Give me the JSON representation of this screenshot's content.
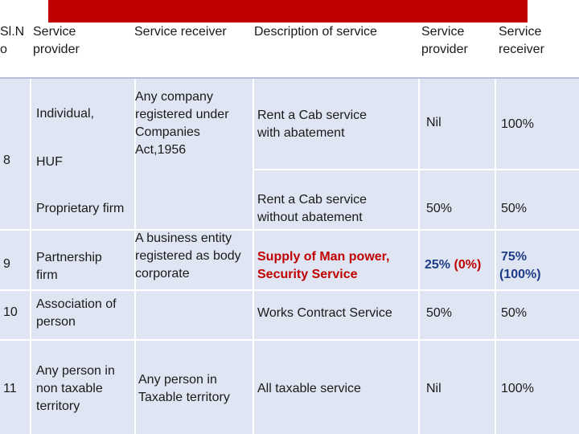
{
  "header": {
    "sl_no": "Sl.N\no",
    "service_provider": "Service\nprovider",
    "service_receiver": "Service receiver",
    "description": "Description of service",
    "pct_service_provider": "Service\nprovider",
    "pct_service_receiver": "Service\nreceiver"
  },
  "rows": {
    "r8": {
      "sl_no": "8",
      "provider_individual": "Individual,",
      "provider_huf": "HUF",
      "provider_proprietary": "Proprietary firm",
      "receiver": "Any company\nregistered under\nCompanies\nAct,1956",
      "desc_with_abatement": "Rent  a Cab service\nwith abatement",
      "sp_with_abatement": "Nil",
      "sr_with_abatement": "100%",
      "desc_without_abatement": "Rent  a Cab  service\nwithout abatement",
      "sp_without_abatement": "50%",
      "sr_without_abatement": "50%"
    },
    "r9": {
      "sl_no": "9",
      "provider": "Partnership\nfirm",
      "receiver": "A  business entity\nregistered as body\ncorporate",
      "desc": "Supply of Man power,\nSecurity Service",
      "sp_main": "25%",
      "sp_paren": "(0%)",
      "sr_main": "75%",
      "sr_paren": "(100%)"
    },
    "r10": {
      "sl_no": "10",
      "provider": "Association of\nperson",
      "desc": "Works Contract Service",
      "sp": "50%",
      "sr": "50%"
    },
    "r11": {
      "sl_no": "11",
      "provider": "Any person in\nnon taxable\nterritory",
      "receiver": "Any person in\nTaxable territory",
      "desc": "All taxable service",
      "sp": "Nil",
      "sr": "100%"
    }
  },
  "colors": {
    "accent_red": "#c00000",
    "table_fill": "#dfe5f2",
    "highlight_blue": "#1f3c88"
  }
}
